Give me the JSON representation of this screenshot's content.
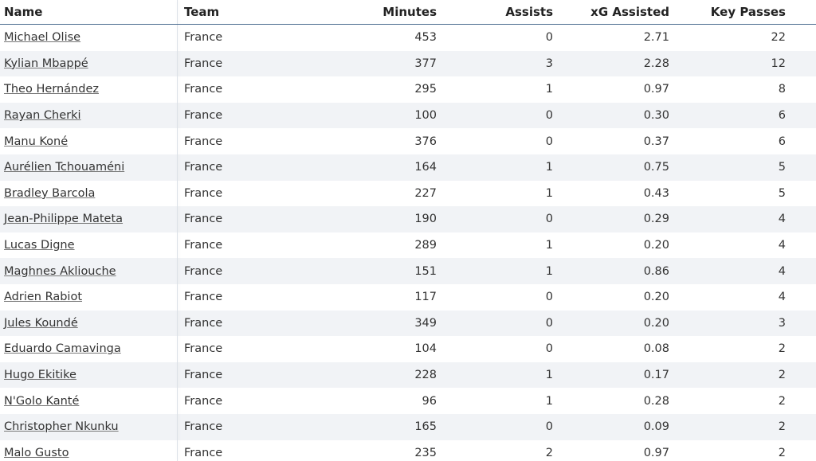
{
  "table": {
    "columns": [
      "Name",
      "Team",
      "Minutes",
      "Assists",
      "xG Assisted",
      "Key Passes"
    ],
    "rows": [
      [
        "Michael Olise",
        "France",
        "453",
        "0",
        "2.71",
        "22"
      ],
      [
        "Kylian Mbappé",
        "France",
        "377",
        "3",
        "2.28",
        "12"
      ],
      [
        "Theo Hernández",
        "France",
        "295",
        "1",
        "0.97",
        "8"
      ],
      [
        "Rayan Cherki",
        "France",
        "100",
        "0",
        "0.30",
        "6"
      ],
      [
        "Manu Koné",
        "France",
        "376",
        "0",
        "0.37",
        "6"
      ],
      [
        "Aurélien Tchouaméni",
        "France",
        "164",
        "1",
        "0.75",
        "5"
      ],
      [
        "Bradley Barcola",
        "France",
        "227",
        "1",
        "0.43",
        "5"
      ],
      [
        "Jean-Philippe Mateta",
        "France",
        "190",
        "0",
        "0.29",
        "4"
      ],
      [
        "Lucas Digne",
        "France",
        "289",
        "1",
        "0.20",
        "4"
      ],
      [
        "Maghnes Akliouche",
        "France",
        "151",
        "1",
        "0.86",
        "4"
      ],
      [
        "Adrien Rabiot",
        "France",
        "117",
        "0",
        "0.20",
        "4"
      ],
      [
        "Jules Koundé",
        "France",
        "349",
        "0",
        "0.20",
        "3"
      ],
      [
        "Eduardo Camavinga",
        "France",
        "104",
        "0",
        "0.08",
        "2"
      ],
      [
        "Hugo Ekitike",
        "France",
        "228",
        "1",
        "0.17",
        "2"
      ],
      [
        "N'Golo Kanté",
        "France",
        "96",
        "1",
        "0.28",
        "2"
      ],
      [
        "Christopher Nkunku",
        "France",
        "165",
        "0",
        "0.09",
        "2"
      ],
      [
        "Malo Gusto",
        "France",
        "235",
        "2",
        "0.97",
        "2"
      ]
    ]
  }
}
